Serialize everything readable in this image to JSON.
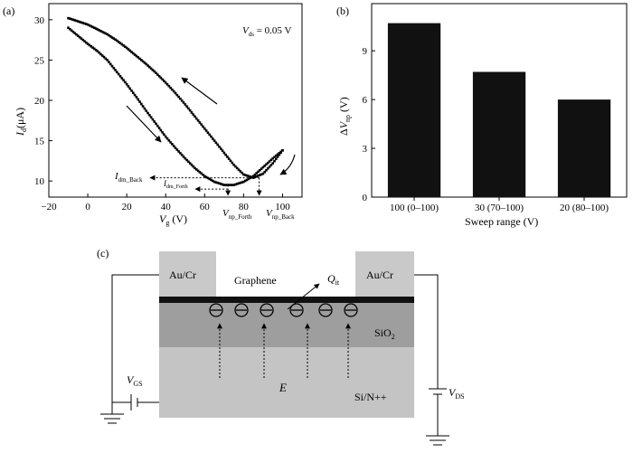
{
  "chart_data": [
    {
      "type": "line",
      "panel_label": "(a)",
      "annotation": "V_ds = 0.05 V",
      "xlabel": "V_g (V)",
      "ylabel": "I_d (μA)",
      "xlim": [
        -20,
        110
      ],
      "ylim": [
        8,
        32
      ],
      "x_ticks": [
        -20,
        0,
        20,
        40,
        60,
        80,
        100
      ],
      "y_ticks": [
        10,
        15,
        20,
        25,
        30
      ],
      "series": [
        {
          "x": [
            -10,
            -5,
            0,
            5,
            10,
            15,
            20,
            25,
            30,
            35,
            40,
            45,
            50,
            55,
            60,
            65,
            70,
            75,
            80,
            85,
            90,
            95,
            100
          ],
          "y": [
            29.0,
            28.0,
            27.0,
            26.1,
            25.0,
            23.5,
            22.0,
            20.4,
            18.7,
            17.1,
            15.5,
            14.1,
            12.8,
            11.6,
            10.6,
            9.9,
            9.5,
            9.5,
            9.9,
            10.6,
            11.7,
            12.8,
            13.8
          ]
        },
        {
          "x": [
            100,
            95,
            90,
            85,
            80,
            75,
            70,
            65,
            60,
            55,
            50,
            45,
            40,
            35,
            30,
            25,
            20,
            15,
            10,
            5,
            0,
            -5,
            -10
          ],
          "y": [
            13.8,
            12.2,
            10.9,
            10.4,
            10.8,
            12.0,
            13.5,
            15.0,
            16.5,
            18.0,
            19.5,
            20.9,
            22.2,
            23.4,
            24.5,
            25.5,
            26.5,
            27.4,
            28.2,
            28.8,
            29.4,
            29.8,
            30.2
          ]
        }
      ],
      "labels": {
        "id_back": "I_dm_Back",
        "id_forth": "I_dm_Forth",
        "vnp_forth": "V_np_Forth",
        "vnp_back": "V_np_Back"
      },
      "markers": {
        "vnp_forth_x": 72,
        "vnp_back_x": 88,
        "id_back_y": 10.4,
        "id_forth_y": 9.5
      }
    },
    {
      "type": "bar",
      "panel_label": "(b)",
      "categories": [
        "100 (0–100)",
        "30 (70–100)",
        "20 (80–100)"
      ],
      "values": [
        10.7,
        7.7,
        6.0
      ],
      "xlabel": "Sweep range (V)",
      "ylabel": "ΔV_np (V)",
      "ylim": [
        0,
        11.9
      ],
      "y_ticks": [
        0,
        3,
        6,
        9
      ],
      "bar_color": "#111111"
    }
  ],
  "diagram": {
    "panel_label": "(c)",
    "electrode_left": "Au/Cr",
    "electrode_right": "Au/Cr",
    "graphene": "Graphene",
    "charge": "Q_it",
    "oxide": "SiO_2",
    "substrate": "Si/N++",
    "field": "E",
    "vgs": "V_GS",
    "vds": "V_DS"
  }
}
